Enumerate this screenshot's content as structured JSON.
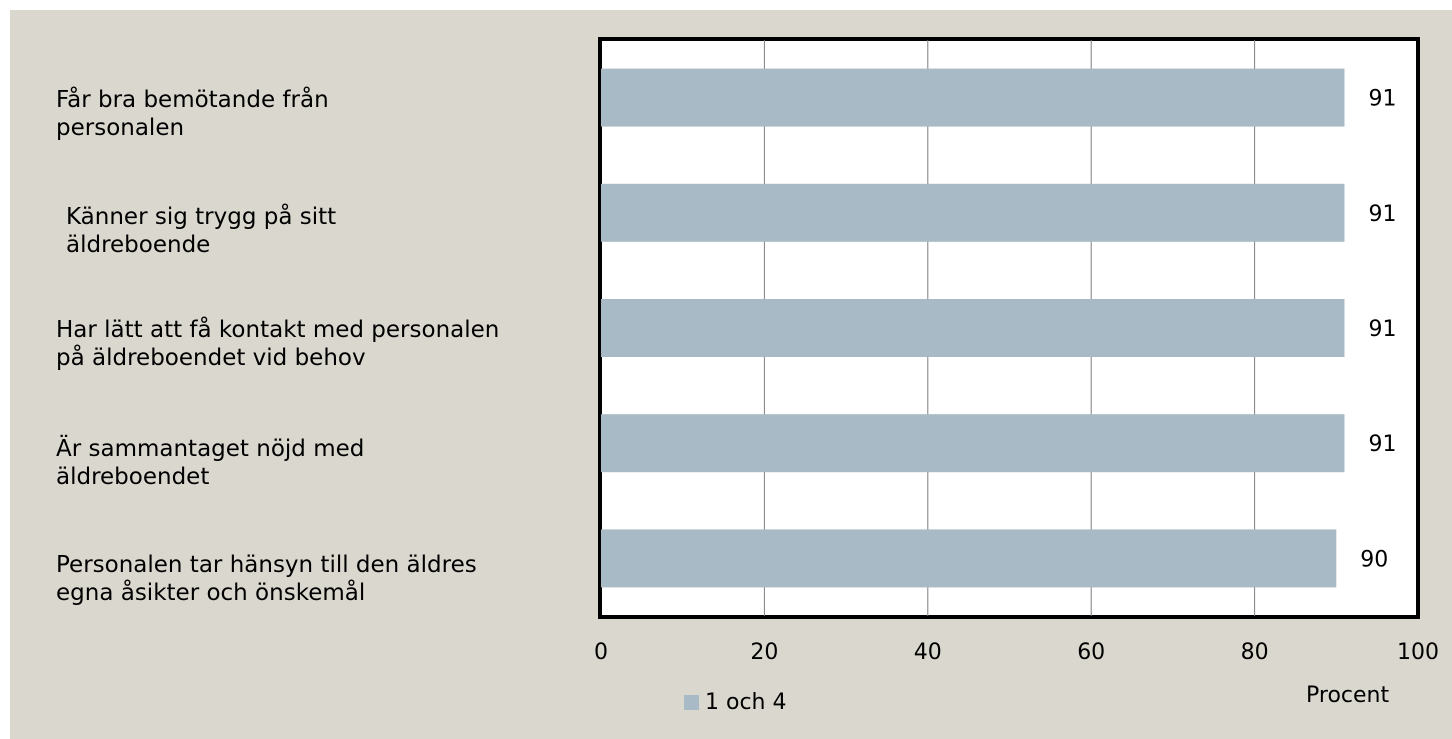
{
  "chart_data": {
    "type": "bar",
    "orientation": "horizontal",
    "categories": [
      "Får bra bemötande från personalen",
      "Känner sig trygg på sitt äldreboende",
      "Har lätt att få kontakt med personalen på äldreboendet vid behov",
      "Är sammantaget nöjd med äldreboendet",
      "Personalen tar hänsyn till den äldres egna åsikter och önskemål"
    ],
    "series": [
      {
        "name": "1 och 4",
        "color": "#a7bac5",
        "values": [
          91,
          91,
          91,
          91,
          90
        ]
      }
    ],
    "data_labels": [
      "91",
      "91",
      "91",
      "91",
      "90"
    ],
    "xlabel": "Procent",
    "xlim": [
      0,
      100
    ],
    "xticks": [
      "0",
      "20",
      "40",
      "60",
      "80",
      "100"
    ],
    "grid": "vertical",
    "legend_position": "bottom",
    "colors": {
      "panel_background": "#dad8ce",
      "plot_background": "#ffffff",
      "bar": "#a7bac5",
      "gridline": "#7f7f7f",
      "frame": "#000000"
    }
  }
}
